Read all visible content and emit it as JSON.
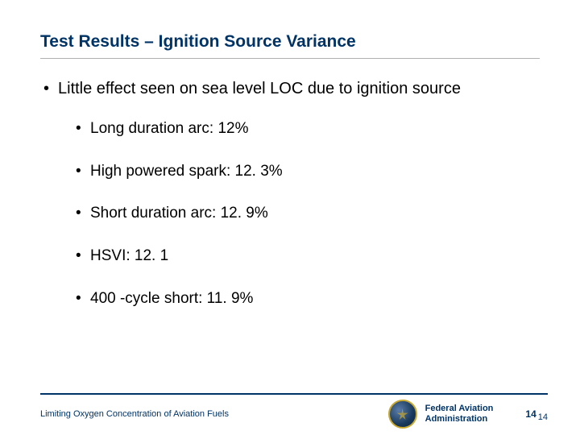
{
  "title": "Test Results – Ignition Source Variance",
  "main_bullet": "Little effect seen on sea level LOC due to ignition source",
  "sub_bullets": [
    "Long duration arc: 12%",
    "High powered spark: 12. 3%",
    "Short duration arc: 12. 9%",
    "HSVI: 12. 1",
    "400 -cycle short: 11. 9%"
  ],
  "footer": {
    "left_text": "Limiting Oxygen Concentration of Aviation Fuels",
    "org_line1": "Federal Aviation",
    "org_line2": "Administration",
    "page_number": "14",
    "page_number_dup": "14"
  },
  "colors": {
    "title_color": "#003366",
    "text_color": "#000000",
    "footer_bar": "#003366",
    "background": "#ffffff"
  }
}
